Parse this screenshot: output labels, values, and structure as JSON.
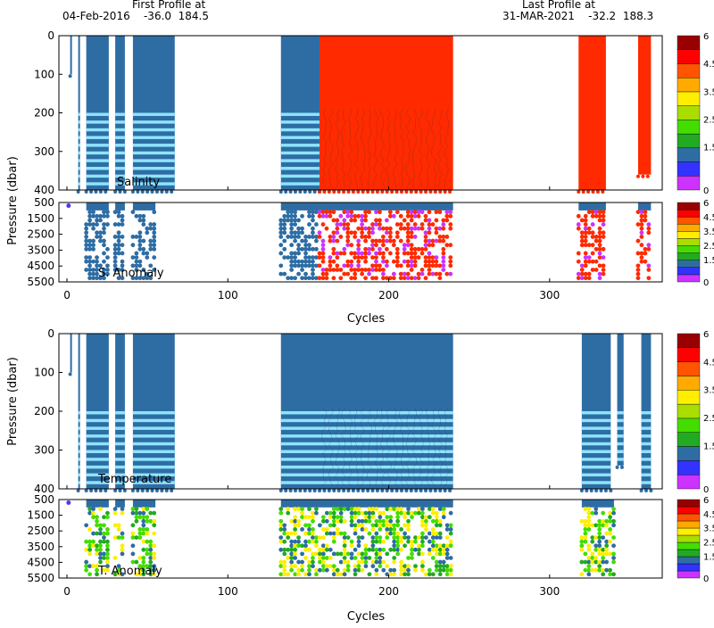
{
  "header": {
    "first_title": "First Profile at",
    "first_info": "04-Feb-2016    -36.0  184.5",
    "last_title": "Last Profile at",
    "last_info": "31-MAR-2021    -32.2  188.3"
  },
  "chart_data": [
    {
      "type": "scatter",
      "panel": "salinity",
      "annotation": "Salinity",
      "ylabel": "Pressure (dbar)",
      "xlim": [
        -5,
        370
      ],
      "ylim": [
        400,
        0
      ],
      "xticks": [
        0,
        100,
        200,
        300
      ],
      "yticks": [
        0,
        100,
        200,
        300,
        400
      ],
      "column_groups": [
        {
          "from": 2,
          "to": 3,
          "max_pressure": 100,
          "color": "#2e6da4"
        },
        {
          "from": 7,
          "to": 8,
          "max_pressure": 400,
          "color": "#2e6da4"
        },
        {
          "from": 12,
          "to": 26,
          "max_pressure": 400,
          "color": "#2e6da4"
        },
        {
          "from": 30,
          "to": 36,
          "max_pressure": 400,
          "color": "#2e6da4"
        },
        {
          "from": 41,
          "to": 67,
          "max_pressure": 400,
          "color": "#2e6da4"
        },
        {
          "from": 133,
          "to": 157,
          "max_pressure": 400,
          "color": "#2e6da4"
        },
        {
          "from": 157,
          "to": 240,
          "max_pressure": 400,
          "color": "#ff2a00"
        },
        {
          "from": 318,
          "to": 335,
          "max_pressure": 400,
          "color": "#ff2a00"
        },
        {
          "from": 355,
          "to": 363,
          "max_pressure": 360,
          "color": "#ff2a00"
        }
      ],
      "colorbar": {
        "labels": [
          "6",
          "4.5",
          "3.5",
          "2.5",
          "1.5",
          "0"
        ]
      }
    },
    {
      "type": "scatter",
      "panel": "salinity-anomaly",
      "annotation": "S. Anomaly",
      "xlim": [
        -5,
        370
      ],
      "ylim": [
        5500,
        500
      ],
      "yticks": [
        500,
        1500,
        2500,
        3500,
        4500,
        5500
      ],
      "xticks": [
        0,
        100,
        200,
        300
      ],
      "xlabel": "Cycles",
      "colorbar": {
        "labels": [
          "6",
          "4.5",
          "3.5",
          "2.5",
          "1.5",
          "0"
        ]
      }
    },
    {
      "type": "scatter",
      "panel": "temperature",
      "annotation": "Temperature",
      "ylabel": "Pressure (dbar)",
      "xlim": [
        -5,
        370
      ],
      "ylim": [
        400,
        0
      ],
      "xticks": [
        0,
        100,
        200,
        300
      ],
      "yticks": [
        0,
        100,
        200,
        300,
        400
      ],
      "column_groups": [
        {
          "from": 2,
          "to": 3,
          "max_pressure": 100,
          "color": "#2e6da4"
        },
        {
          "from": 7,
          "to": 8,
          "max_pressure": 400,
          "color": "#2e6da4"
        },
        {
          "from": 12,
          "to": 26,
          "max_pressure": 400,
          "color": "#2e6da4"
        },
        {
          "from": 30,
          "to": 36,
          "max_pressure": 400,
          "color": "#2e6da4"
        },
        {
          "from": 41,
          "to": 67,
          "max_pressure": 400,
          "color": "#2e6da4"
        },
        {
          "from": 133,
          "to": 240,
          "max_pressure": 400,
          "color": "#2e6da4"
        },
        {
          "from": 320,
          "to": 338,
          "max_pressure": 400,
          "color": "#2e6da4"
        },
        {
          "from": 342,
          "to": 346,
          "max_pressure": 340,
          "color": "#2e6da4"
        },
        {
          "from": 357,
          "to": 363,
          "max_pressure": 400,
          "color": "#2e6da4"
        }
      ],
      "colorbar": {
        "labels": [
          "6",
          "4.5",
          "3.5",
          "2.5",
          "1.5",
          "0"
        ]
      }
    },
    {
      "type": "scatter",
      "panel": "temperature-anomaly",
      "annotation": "T. Anomaly",
      "xlim": [
        -5,
        370
      ],
      "ylim": [
        5500,
        500
      ],
      "yticks": [
        500,
        1500,
        2500,
        3500,
        4500,
        5500
      ],
      "xticks": [
        0,
        100,
        200,
        300
      ],
      "xlabel": "Cycles",
      "colorbar": {
        "labels": [
          "6",
          "4.5",
          "3.5",
          "2.5",
          "1.5",
          "0"
        ]
      }
    }
  ],
  "colors": {
    "profile_blue": "#2e6da4",
    "light_blue": "#8fe4ff",
    "red": "#ff2a00",
    "colorbar": [
      "#cc33ff",
      "#3333ff",
      "#2e6da4",
      "#22aa22",
      "#44dd00",
      "#aadd00",
      "#ffee00",
      "#ffaa00",
      "#ff5500",
      "#ff0000",
      "#990000"
    ]
  }
}
